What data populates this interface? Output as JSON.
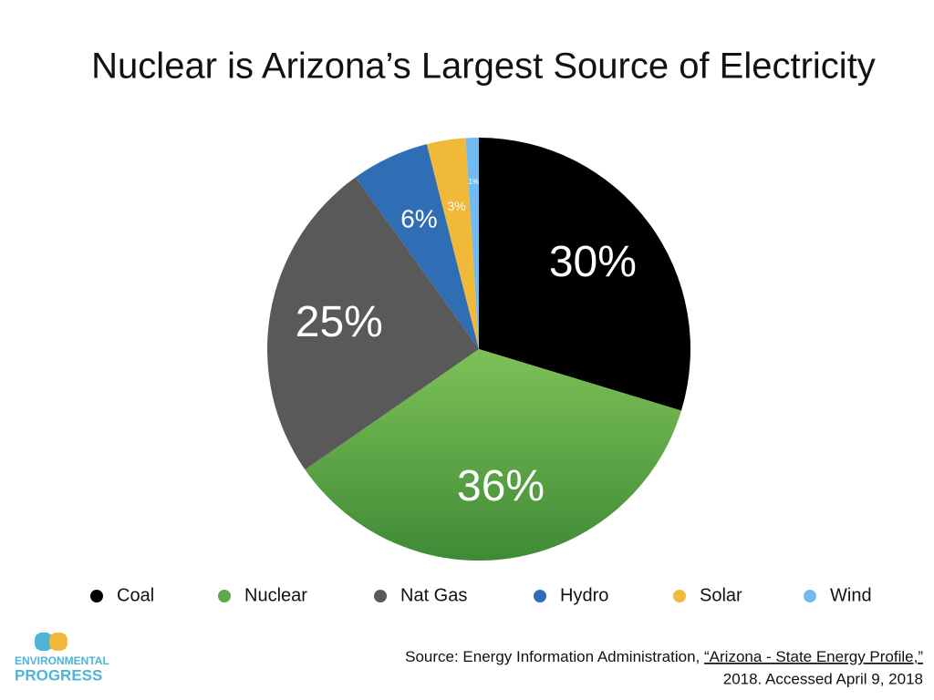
{
  "chart_data": {
    "type": "pie",
    "title": "Nuclear is Arizona’s Largest Source of Electricity",
    "categories": [
      "Coal",
      "Nuclear",
      "Nat Gas",
      "Hydro",
      "Solar",
      "Wind"
    ],
    "values": [
      30,
      36,
      25,
      6,
      3,
      1
    ],
    "value_labels": [
      "30%",
      "36%",
      "25%",
      "6%",
      "3%",
      "1%"
    ],
    "colors": [
      "#000000",
      "#5fa94a",
      "#595959",
      "#2f6db5",
      "#f0b93a",
      "#72bbf2"
    ],
    "legend": "bottom"
  },
  "source": {
    "prefix": "Source: Energy Information Administration,",
    "link": "“Arizona - State Energy Profile,”",
    "suffix": "2018. Accessed April 9, 2018"
  },
  "logo": {
    "line1": "ENVIRONMENTAL",
    "line2": "PROGRESS"
  }
}
